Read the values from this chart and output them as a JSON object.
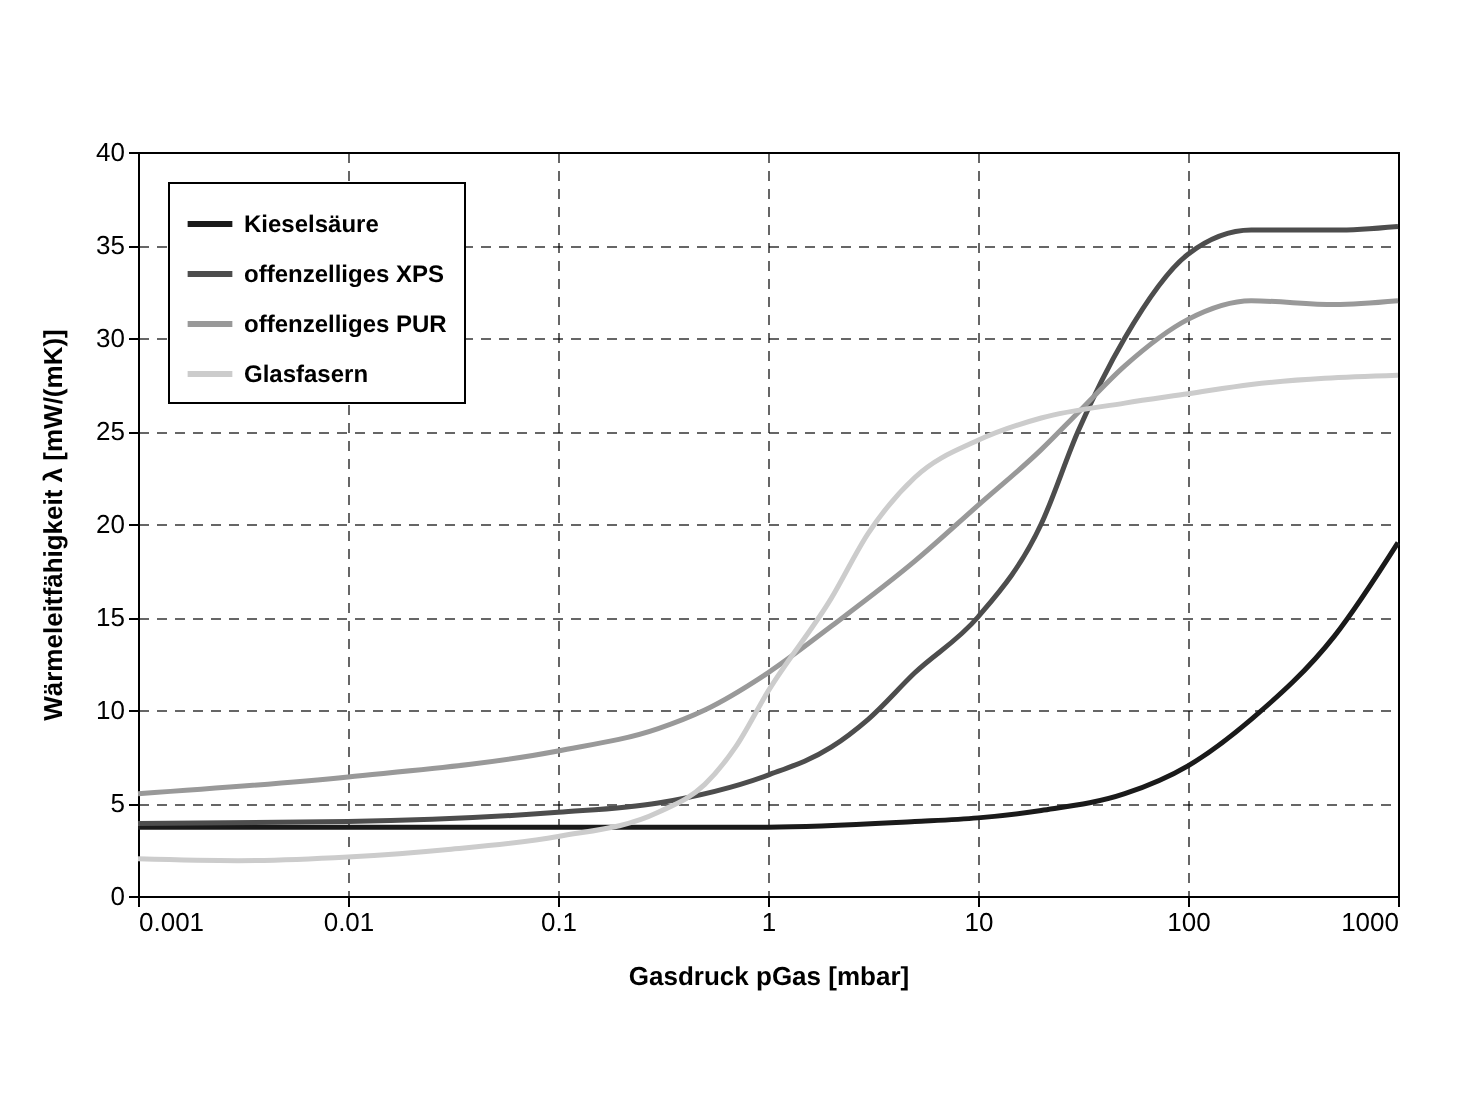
{
  "chart_data": {
    "type": "line",
    "xlabel": "Gasdruck pGas [mbar]",
    "ylabel": "Wärmeleitfähigkeit λ [mW/(mK)]",
    "log": "x",
    "xlim": [
      0.001,
      1000
    ],
    "xticks": [
      0.001,
      0.01,
      0.1,
      1,
      10,
      100,
      1000
    ],
    "ylim": [
      0,
      40
    ],
    "yticks": [
      0,
      5,
      10,
      15,
      20,
      25,
      30,
      35,
      40
    ],
    "grid": true,
    "legend": "top left",
    "marker": "none",
    "line_style": "solid",
    "series": [
      {
        "name": "Kieselsäure",
        "color": "#1a1a1a",
        "x": [
          0.001,
          0.01,
          0.1,
          1,
          5,
          10,
          20,
          50,
          100,
          200,
          500,
          1000
        ],
        "values": [
          3.7,
          3.7,
          3.7,
          3.7,
          4.0,
          4.2,
          4.6,
          5.5,
          7,
          9.5,
          14,
          19
        ]
      },
      {
        "name": "offenzelliges XPS",
        "color": "#4d4d4d",
        "x": [
          0.001,
          0.01,
          0.1,
          0.3,
          1,
          2,
          3,
          5,
          10,
          20,
          30,
          50,
          100,
          200,
          500,
          1000
        ],
        "values": [
          3.9,
          4.0,
          4.5,
          5,
          6.5,
          8,
          9.5,
          12,
          15,
          20,
          25,
          30,
          34.5,
          35.8,
          35.8,
          36
        ]
      },
      {
        "name": "offenzelliges PUR",
        "color": "#999999",
        "x": [
          0.001,
          0.01,
          0.1,
          0.3,
          0.5,
          1,
          2,
          5,
          10,
          20,
          30,
          50,
          100,
          200,
          500,
          1000
        ],
        "values": [
          5.5,
          6.4,
          7.8,
          9,
          10,
          12,
          14.5,
          18,
          21,
          24,
          26,
          28.5,
          31,
          32,
          31.8,
          32
        ]
      },
      {
        "name": "Glasfasern",
        "color": "#cccccc",
        "x": [
          0.001,
          0.003,
          0.01,
          0.03,
          0.1,
          0.3,
          0.5,
          0.7,
          1,
          2,
          3,
          5,
          10,
          20,
          50,
          100,
          200,
          1000
        ],
        "values": [
          2,
          1.9,
          2.1,
          2.5,
          3.2,
          4.5,
          6,
          8,
          11,
          16,
          19.5,
          22.5,
          24.5,
          25.7,
          26.5,
          27,
          27.5,
          28
        ]
      }
    ]
  }
}
